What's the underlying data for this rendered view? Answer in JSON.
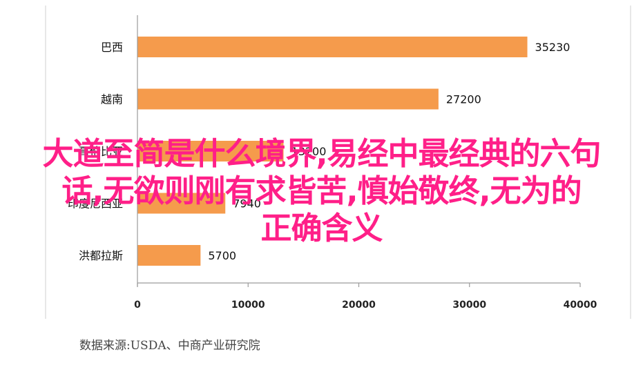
{
  "chart_data": {
    "type": "bar",
    "orientation": "horizontal",
    "categories": [
      "巴西",
      "越南",
      "哥伦比亚",
      "印度尼西亚",
      "洪都拉斯"
    ],
    "values": [
      35230,
      27200,
      13200,
      7940,
      5700
    ],
    "value_labels": [
      "35230",
      "27200",
      "13200",
      "7940",
      "5700"
    ],
    "xlim": [
      0,
      40000
    ],
    "xticks": [
      "0",
      "10000",
      "20000",
      "30000",
      "40000"
    ],
    "bar_color": "#f59b4c",
    "grid": false
  },
  "source_note": "数据来源:USDA、中商产业研究院",
  "overlay_title": {
    "lines": [
      "大道至简是什么境界,易经中最经典的六句",
      "话,无欲则刚有求皆苦,慎始敬终,无为的",
      "正确含义"
    ],
    "color": "#ff1f88"
  }
}
